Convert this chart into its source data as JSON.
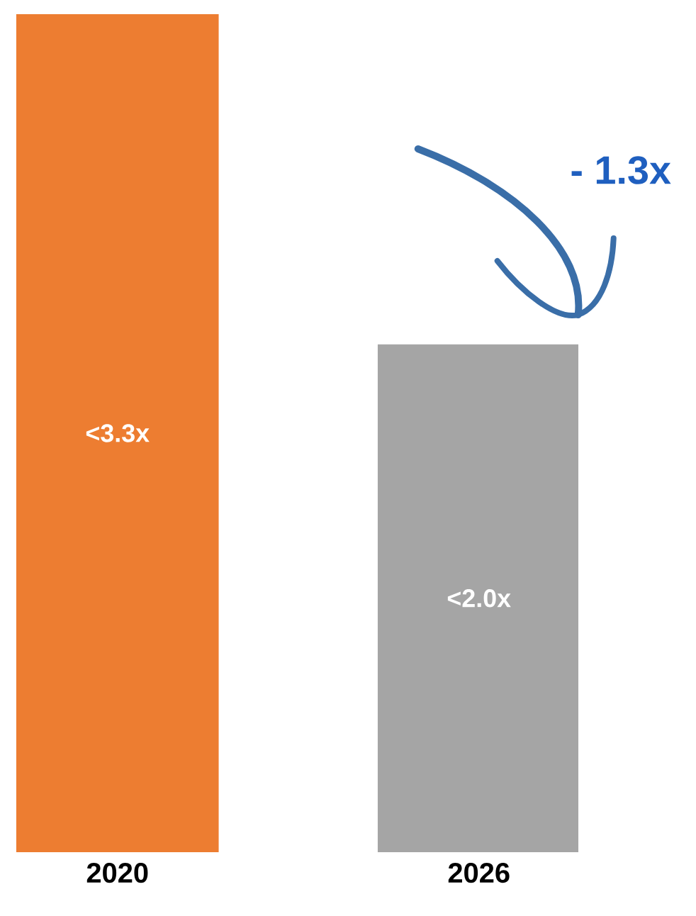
{
  "chart_data": {
    "type": "bar",
    "categories": [
      "2020",
      "2026"
    ],
    "values": [
      3.3,
      2.0
    ],
    "colors": [
      "#ed7d31",
      "#a5a5a5"
    ],
    "value_labels": [
      "<3.3x",
      "<2.0x"
    ],
    "annotations": [
      "- 1.3x"
    ]
  }
}
